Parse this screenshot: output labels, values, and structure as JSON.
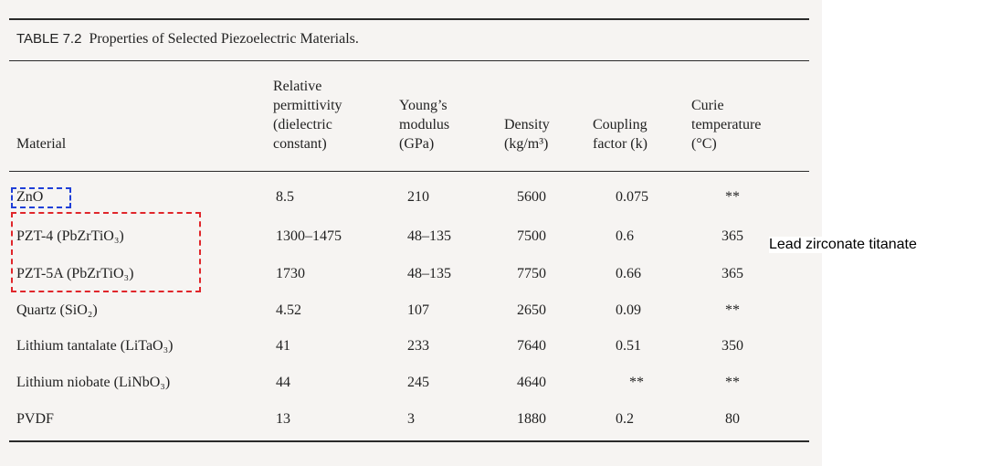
{
  "caption": {
    "label": "TABLE 7.2",
    "title": "Properties of Selected Piezoelectric Materials."
  },
  "headers": {
    "material": [
      "Material"
    ],
    "permittivity": [
      "Relative",
      "permittivity",
      "(dielectric",
      "constant)"
    ],
    "youngs": [
      "Young’s",
      "modulus",
      "(GPa)"
    ],
    "density": [
      "Density",
      "(kg/m³)"
    ],
    "coupling": [
      "Coupling",
      "factor (k)"
    ],
    "curie": [
      "Curie",
      "temperature",
      "(°C)"
    ]
  },
  "rows": [
    {
      "material": "ZnO",
      "permittivity": "8.5",
      "youngs": "210",
      "density": "5600",
      "coupling": "0.075",
      "curie": "**"
    },
    {
      "material": "PZT-4 (PbZrTiO₃)",
      "permittivity": "1300–1475",
      "youngs": "48–135",
      "density": "7500",
      "coupling": "0.6",
      "curie": "365"
    },
    {
      "material": "PZT-5A (PbZrTiO₃)",
      "permittivity": "1730",
      "youngs": "48–135",
      "density": "7750",
      "coupling": "0.66",
      "curie": "365"
    },
    {
      "material": "Quartz (SiO₂)",
      "permittivity": "4.52",
      "youngs": "107",
      "density": "2650",
      "coupling": "0.09",
      "curie": "**"
    },
    {
      "material": "Lithium tantalate (LiTaO₃)",
      "permittivity": "41",
      "youngs": "233",
      "density": "7640",
      "coupling": "0.51",
      "curie": "350"
    },
    {
      "material": "Lithium niobate (LiNbO₃)",
      "permittivity": "44",
      "youngs": "245",
      "density": "4640",
      "coupling": "**",
      "curie": "**"
    },
    {
      "material": "PVDF",
      "permittivity": "13",
      "youngs": "3",
      "density": "1880",
      "coupling": "0.2",
      "curie": "80"
    }
  ],
  "annotation": "Lead zirconate titanate",
  "colors": {
    "blue_box": "#1f3fd8",
    "red_box": "#e0262b"
  }
}
